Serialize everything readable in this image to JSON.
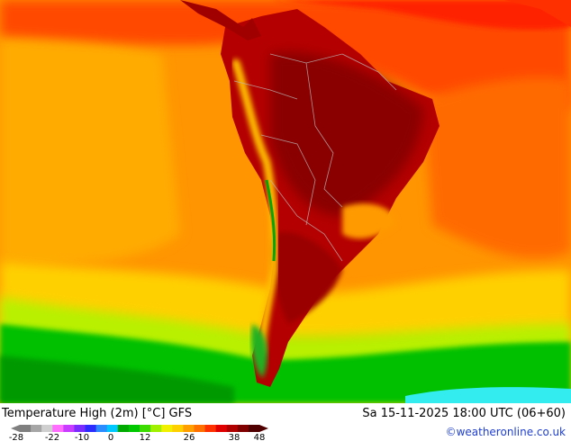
{
  "map": {
    "title": "Temperature High (2m) [°C] GFS",
    "datetime": "Sa 15-11-2025 18:00 UTC (06+60)",
    "credit": "©weatheronline.co.uk",
    "legend": {
      "labels": [
        "-28",
        "-22",
        "-10",
        "0",
        "12",
        "26",
        "38",
        "48"
      ],
      "colors": [
        "#7f7f7f",
        "#a6a6a6",
        "#cfcfcf",
        "#ff6dff",
        "#c83cff",
        "#7a2cff",
        "#2c2cff",
        "#2a8cff",
        "#00c8ff",
        "#00aa00",
        "#00c800",
        "#3cdc00",
        "#a0f000",
        "#f0f000",
        "#ffd000",
        "#ffa000",
        "#ff7000",
        "#ff3000",
        "#e00000",
        "#b00000",
        "#800000",
        "#500000"
      ]
    },
    "regions": {
      "ocean_cold": "#ff9f00",
      "ocean_warm": "#ff5200",
      "continent_hot": "#9a0000",
      "andes_cool": "#ffc000",
      "southern_ocean": "#00c000",
      "antarctic_edge": "#33ecf0"
    }
  }
}
